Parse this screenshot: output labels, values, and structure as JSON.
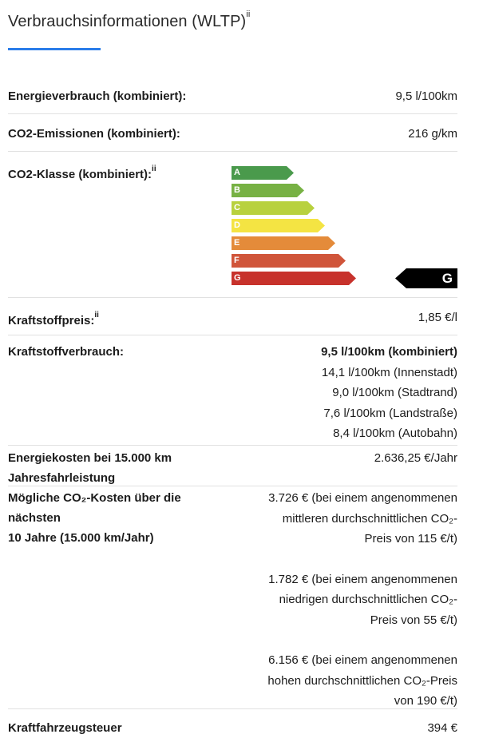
{
  "header": {
    "title": "Verbrauchsinformationen (WLTP)",
    "footnote": "ii"
  },
  "rows": {
    "energy": {
      "label": "Energieverbrauch (kombiniert):",
      "value": "9,5 l/100km"
    },
    "co2": {
      "label": "CO2-Emissionen (kombiniert):",
      "value": "216 g/km"
    },
    "co2class": {
      "label": "CO2-Klasse (kombiniert):",
      "footnote": "ii"
    },
    "fuelprice": {
      "label": "Kraftstoffpreis:",
      "footnote": "ii",
      "value": "1,85 €/l"
    },
    "consumption": {
      "label": "Kraftstoffverbrauch:",
      "values": [
        "9,5 l/100km (kombiniert)",
        "14,1 l/100km (Innenstadt)",
        "9,0 l/100km (Stadtrand)",
        "7,6 l/100km (Landstraße)",
        "8,4 l/100km (Autobahn)"
      ]
    },
    "energycost": {
      "label_line1": "Energiekosten bei 15.000 km",
      "label_line2": "Jahresfahrleistung",
      "value": "2.636,25 €/Jahr"
    },
    "co2cost": {
      "label_line1": "Mögliche CO₂-Kosten über die",
      "label_line2": "nächsten",
      "label_line3": "10 Jahre (15.000 km/Jahr)",
      "p1": [
        "3.726 € (bei einem angenommenen",
        "mittleren durchschnittlichen CO₂-",
        "Preis von 115 €/t)"
      ],
      "p2": [
        "1.782 € (bei einem angenommenen",
        "niedrigen durchschnittlichen CO₂-",
        "Preis von 55 €/t)"
      ],
      "p3": [
        "6.156 € (bei einem angenommenen",
        "hohen durchschnittlichen CO₂-Preis",
        "von 190 €/t)"
      ]
    },
    "tax": {
      "label": "Kraftfahrzeugsteuer",
      "value": "394 €"
    }
  },
  "co2_label": {
    "classes": [
      {
        "letter": "A",
        "color": "#4a9a4c"
      },
      {
        "letter": "B",
        "color": "#77b144"
      },
      {
        "letter": "C",
        "color": "#b8d13e"
      },
      {
        "letter": "D",
        "color": "#f4e443"
      },
      {
        "letter": "E",
        "color": "#e48b3a"
      },
      {
        "letter": "F",
        "color": "#d0553a"
      },
      {
        "letter": "G",
        "color": "#c7322c"
      }
    ],
    "rating": "G"
  }
}
